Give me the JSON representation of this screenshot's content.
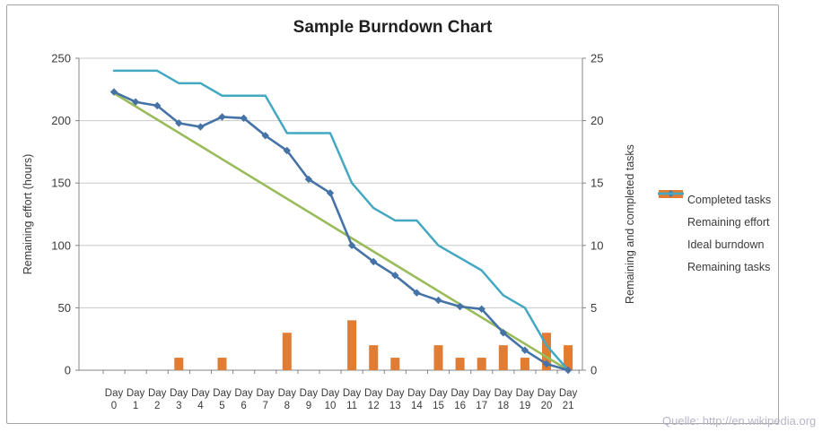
{
  "title": "Sample Burndown Chart",
  "source_note": "Quelle: http://en.wikipedia.org",
  "chart_data": {
    "type": "bar+line combo",
    "title": "Sample Burndown Chart",
    "categories": [
      "Day 0",
      "Day 1",
      "Day 2",
      "Day 3",
      "Day 4",
      "Day 5",
      "Day 6",
      "Day 7",
      "Day 8",
      "Day 9",
      "Day 10",
      "Day 11",
      "Day 12",
      "Day 13",
      "Day 14",
      "Day 15",
      "Day 16",
      "Day 17",
      "Day 18",
      "Day 19",
      "Day 20",
      "Day 21"
    ],
    "left_axis": {
      "label": "Remaining effort (hours)",
      "min": 0,
      "max": 250,
      "ticks": [
        0,
        50,
        100,
        150,
        200,
        250
      ]
    },
    "right_axis": {
      "label": "Remaining and  completed tasks",
      "min": 0,
      "max": 25,
      "ticks": [
        0,
        5,
        10,
        15,
        20,
        25
      ]
    },
    "grid": "horizontal",
    "legend_position": "right",
    "series": [
      {
        "name": "Completed tasks",
        "type": "bar",
        "axis": "right",
        "color": "#e07c33",
        "values": [
          0,
          0,
          0,
          1,
          0,
          1,
          0,
          0,
          3,
          0,
          0,
          4,
          2,
          1,
          0,
          2,
          1,
          1,
          2,
          1,
          3,
          2
        ]
      },
      {
        "name": "Remaining effort",
        "type": "line",
        "marker": "diamond",
        "axis": "left",
        "color": "#4573a7",
        "values": [
          223,
          215,
          212,
          198,
          195,
          203,
          202,
          188,
          176,
          153,
          142,
          100,
          87,
          76,
          62,
          56,
          51,
          49,
          30,
          16,
          5,
          0
        ]
      },
      {
        "name": "Ideal burndown",
        "type": "line",
        "axis": "left",
        "color": "#9abb59",
        "straight_line": {
          "start_day": 0,
          "start_value": 222,
          "end_day": 21,
          "end_value": 0
        }
      },
      {
        "name": "Remaining tasks",
        "type": "line",
        "axis": "right",
        "color": "#44a8c2",
        "values": [
          24,
          24,
          24,
          23,
          23,
          22,
          22,
          22,
          19,
          19,
          19,
          15,
          13,
          12,
          12,
          10,
          9,
          8,
          6,
          5,
          2,
          0
        ]
      }
    ]
  },
  "legend": [
    {
      "label": "Completed tasks",
      "swatch": "bar",
      "color": "#e07c33"
    },
    {
      "label": "Remaining effort",
      "swatch": "line-diamond",
      "color": "#4573a7"
    },
    {
      "label": "Ideal burndown",
      "swatch": "line",
      "color": "#9abb59"
    },
    {
      "label": "Remaining tasks",
      "swatch": "line",
      "color": "#44a8c2"
    }
  ],
  "colors": {
    "gridline": "#c9c9c9",
    "axis_line": "#848484",
    "tick_text": "#3a3a3a",
    "frame_border": "#a3a3a3",
    "watermark": "#b5b5c8"
  }
}
